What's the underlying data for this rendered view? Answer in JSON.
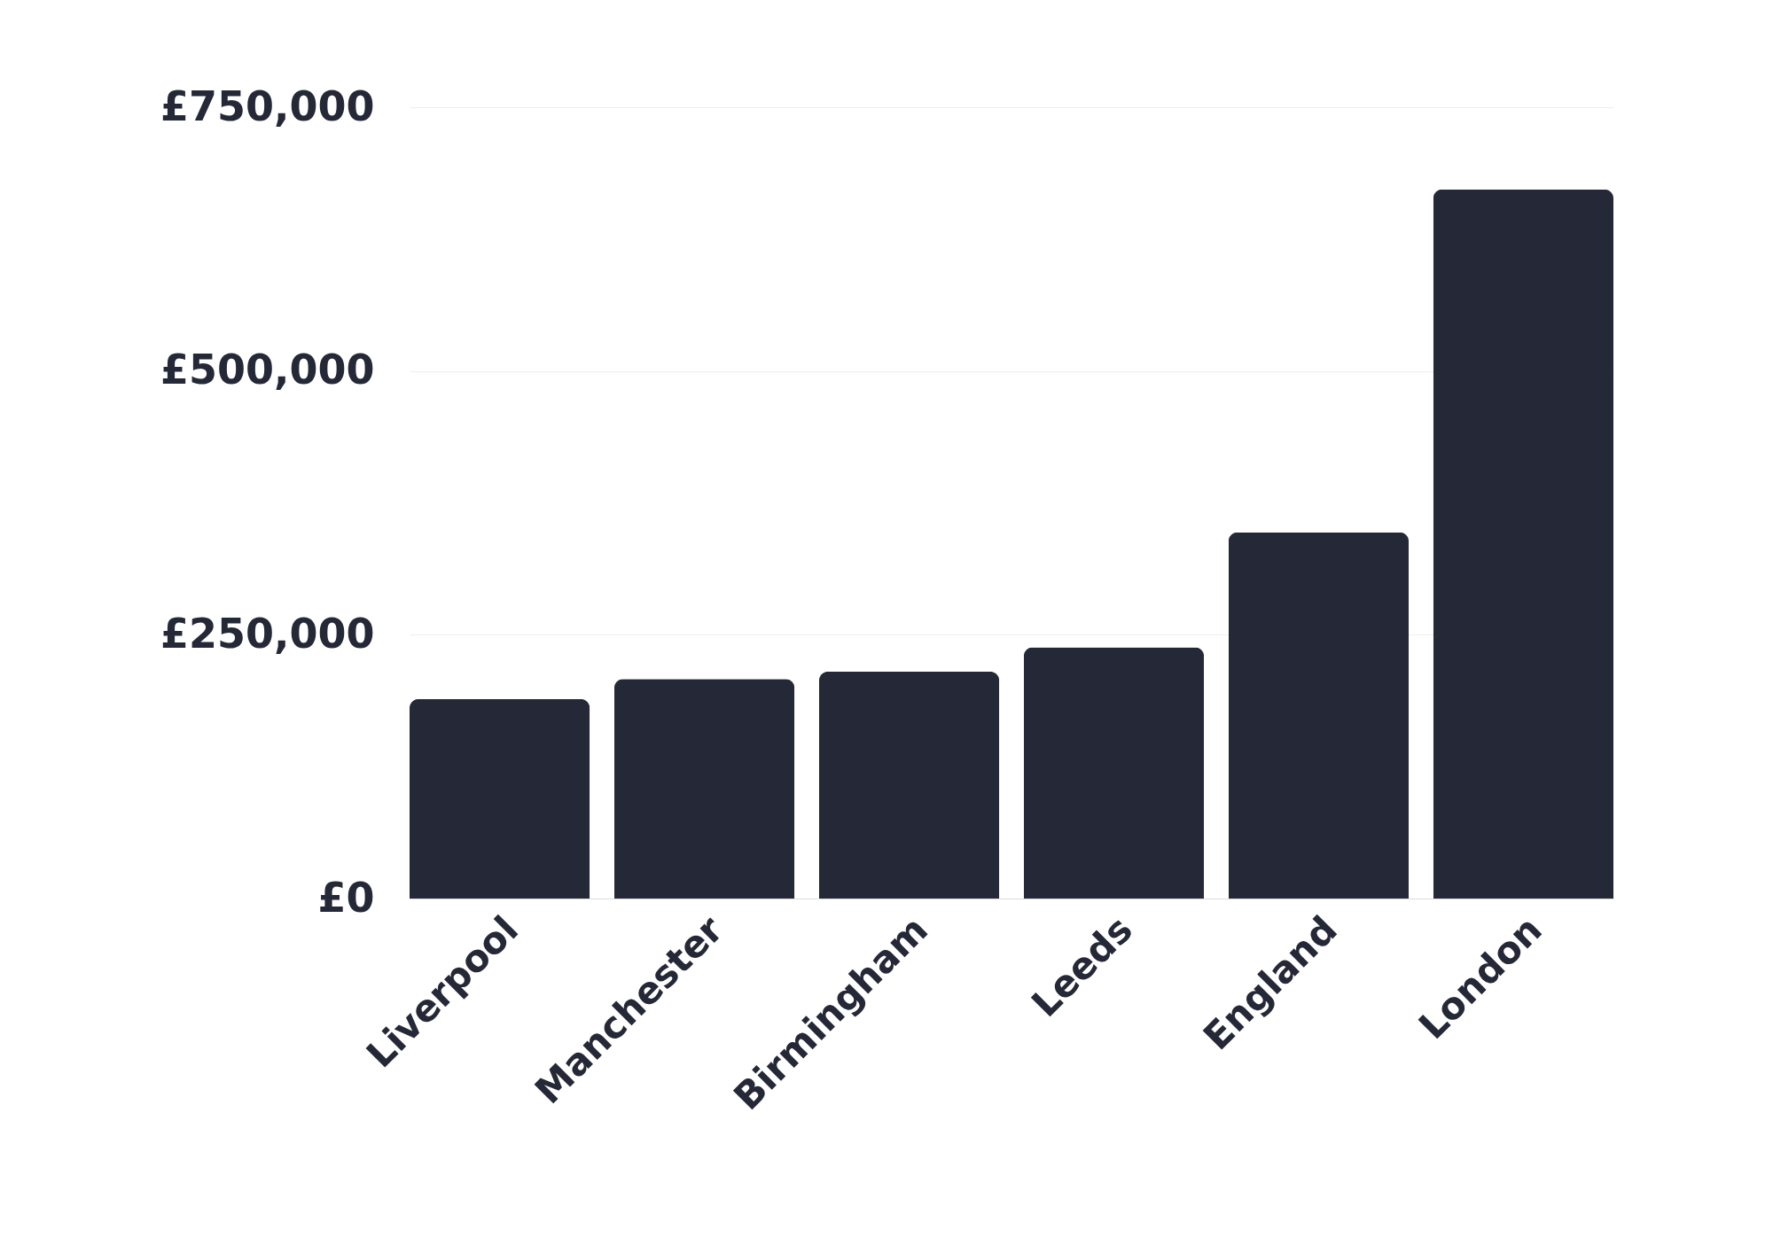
{
  "chart_data": {
    "type": "bar",
    "categories": [
      "Liverpool",
      "Manchester",
      "Birmingham",
      "Leeds",
      "England",
      "London"
    ],
    "values": [
      189000,
      208000,
      215000,
      238000,
      347000,
      672000
    ],
    "color": "#252836",
    "ylim": [
      0,
      750000
    ],
    "yticks": [
      {
        "value": 0,
        "label": "£0"
      },
      {
        "value": 250000,
        "label": "£250,000"
      },
      {
        "value": 500000,
        "label": "£500,000"
      },
      {
        "value": 750000,
        "label": "£750,000"
      }
    ],
    "grid": "y"
  }
}
